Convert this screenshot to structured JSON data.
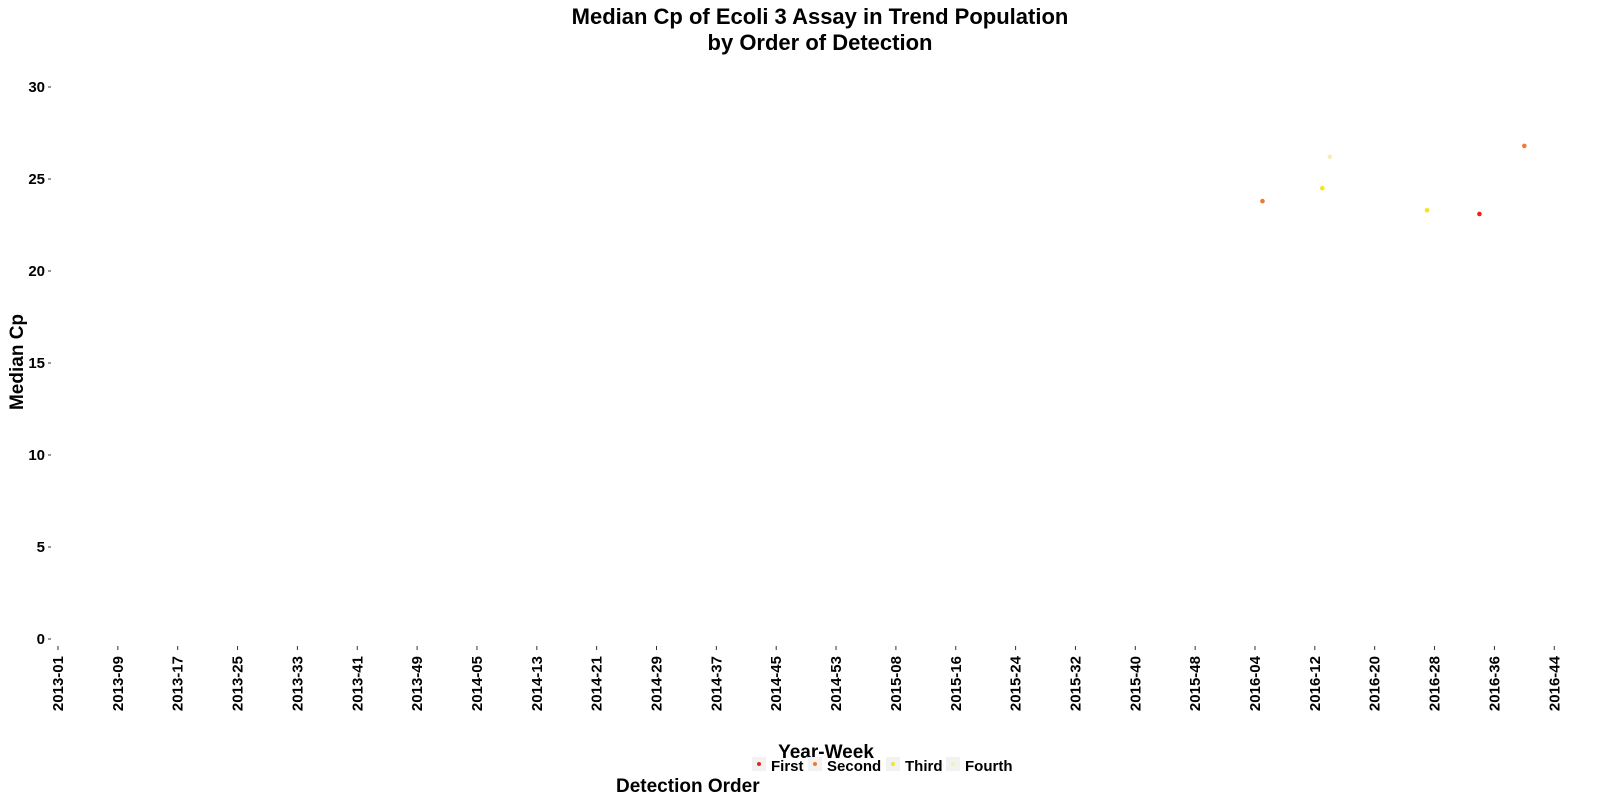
{
  "chart_data": {
    "type": "scatter",
    "title": "Median Cp of Ecoli 3 Assay in Trend Population",
    "subtitle": "by Order of Detection",
    "xlabel": "Year-Week",
    "ylabel": "Median Cp",
    "ylim": [
      0,
      30
    ],
    "yticks": [
      0,
      5,
      10,
      15,
      20,
      25,
      30
    ],
    "grid": false,
    "legend_position": "bottom",
    "legend_title": "Detection Order",
    "categories": [
      "2013-01",
      "2013-09",
      "2013-17",
      "2013-25",
      "2013-33",
      "2013-41",
      "2013-49",
      "2014-05",
      "2014-13",
      "2014-21",
      "2014-29",
      "2014-37",
      "2014-45",
      "2014-53",
      "2015-08",
      "2015-16",
      "2015-24",
      "2015-32",
      "2015-40",
      "2015-48",
      "2016-04",
      "2016-12",
      "2016-20",
      "2016-28",
      "2016-36",
      "2016-44"
    ],
    "series": [
      {
        "name": "First",
        "color": "#e8231f",
        "points": [
          {
            "x": "2016-34",
            "y": 23.1
          }
        ]
      },
      {
        "name": "Second",
        "color": "#f07b2e",
        "points": [
          {
            "x": "2016-05",
            "y": 23.8
          },
          {
            "x": "2016-40",
            "y": 26.8
          }
        ]
      },
      {
        "name": "Third",
        "color": "#f2e61e",
        "points": [
          {
            "x": "2016-13",
            "y": 24.5
          },
          {
            "x": "2016-27",
            "y": 23.3
          }
        ]
      },
      {
        "name": "Fourth",
        "color": "#f5efb6",
        "points": [
          {
            "x": "2016-14",
            "y": 26.2
          }
        ]
      }
    ]
  }
}
